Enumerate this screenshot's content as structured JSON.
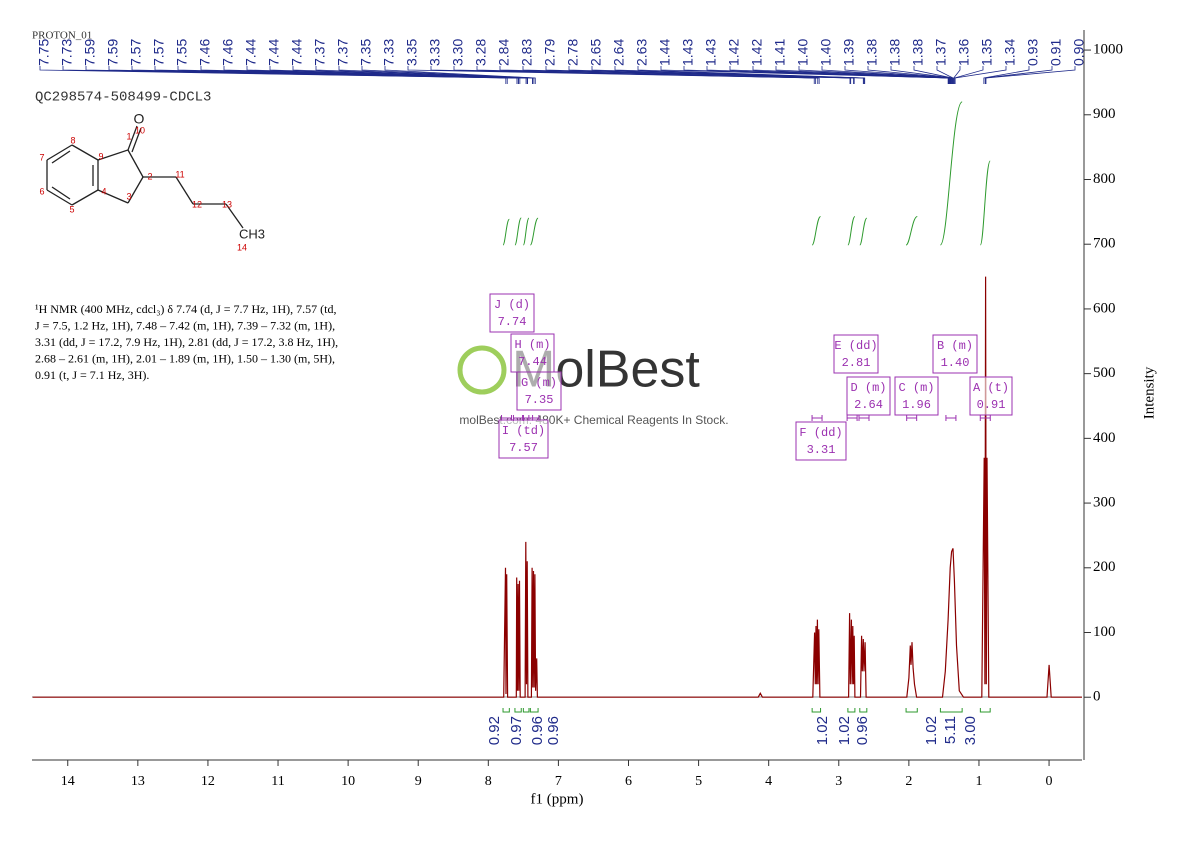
{
  "chart_data": {
    "type": "line",
    "header_text": "PROTON_01",
    "title": "QC298574-508499-CDCL3",
    "xlabel": "f1 (ppm)",
    "ylabel": "Intensity",
    "xlim": [
      14.51,
      -0.47
    ],
    "xticks": [
      14,
      13,
      12,
      11,
      10,
      9,
      8,
      7,
      6,
      5,
      4,
      3,
      2,
      1,
      0
    ],
    "ylim": [
      -97,
      1031
    ],
    "yticks": [
      0,
      100,
      200,
      300,
      400,
      500,
      600,
      700,
      800,
      900,
      1000
    ],
    "color": "#8b0000",
    "x": [
      14.5,
      7.78,
      7.755,
      7.748,
      7.738,
      7.725,
      7.6,
      7.595,
      7.585,
      7.575,
      7.565,
      7.555,
      7.545,
      7.475,
      7.465,
      7.455,
      7.445,
      7.435,
      7.385,
      7.375,
      7.365,
      7.355,
      7.345,
      7.335,
      7.325,
      7.31,
      7.3,
      4.15,
      4.12,
      4.09,
      3.37,
      3.345,
      3.335,
      3.325,
      3.315,
      3.305,
      3.295,
      3.285,
      3.27,
      2.86,
      2.845,
      2.835,
      2.82,
      2.81,
      2.8,
      2.79,
      2.78,
      2.77,
      2.69,
      2.675,
      2.665,
      2.65,
      2.64,
      2.625,
      2.61,
      2.03,
      2.0,
      1.98,
      1.97,
      1.955,
      1.94,
      1.92,
      1.89,
      1.52,
      1.48,
      1.44,
      1.41,
      1.39,
      1.37,
      1.35,
      1.32,
      1.28,
      1.22,
      0.96,
      0.925,
      0.915,
      0.905,
      0.895,
      0.885,
      0.86,
      0.03,
      0.0,
      -0.03,
      -0.47
    ],
    "values": [
      0,
      0,
      200,
      5,
      190,
      0,
      0,
      185,
      10,
      175,
      10,
      180,
      0,
      0,
      240,
      20,
      210,
      0,
      0,
      200,
      15,
      195,
      15,
      190,
      10,
      60,
      0,
      0,
      6,
      0,
      0,
      100,
      20,
      110,
      20,
      120,
      20,
      105,
      0,
      0,
      130,
      20,
      120,
      20,
      110,
      20,
      95,
      0,
      0,
      95,
      40,
      90,
      40,
      85,
      0,
      0,
      30,
      80,
      50,
      85,
      45,
      20,
      0,
      0,
      40,
      120,
      200,
      225,
      230,
      180,
      80,
      10,
      0,
      0,
      370,
      20,
      650,
      20,
      370,
      0,
      0,
      50,
      0,
      0
    ],
    "peak_labels": [
      "7.75",
      "7.73",
      "7.59",
      "7.59",
      "7.57",
      "7.57",
      "7.55",
      "7.46",
      "7.46",
      "7.44",
      "7.44",
      "7.44",
      "7.37",
      "7.37",
      "7.35",
      "7.33",
      "3.35",
      "3.33",
      "3.30",
      "3.28",
      "2.84",
      "2.83",
      "2.79",
      "2.78",
      "2.65",
      "2.64",
      "2.63",
      "1.44",
      "1.43",
      "1.43",
      "1.42",
      "1.42",
      "1.41",
      "1.40",
      "1.40",
      "1.39",
      "1.38",
      "1.38",
      "1.38",
      "1.37",
      "1.36",
      "1.35",
      "1.34",
      "0.93",
      "0.91",
      "0.90"
    ],
    "integrals": [
      {
        "label": "0.92",
        "range": [
          7.79,
          7.7
        ]
      },
      {
        "label": "0.97",
        "range": [
          7.62,
          7.53
        ]
      },
      {
        "label": "0.96",
        "range": [
          7.5,
          7.42
        ]
      },
      {
        "label": "0.96",
        "range": [
          7.4,
          7.29
        ]
      },
      {
        "label": "1.02",
        "range": [
          3.38,
          3.26
        ]
      },
      {
        "label": "1.02",
        "range": [
          2.87,
          2.77
        ]
      },
      {
        "label": "0.96",
        "range": [
          2.7,
          2.6
        ]
      },
      {
        "label": "1.02",
        "range": [
          2.04,
          1.88
        ]
      },
      {
        "label": "5.11",
        "range": [
          1.55,
          1.24
        ]
      },
      {
        "label": "3.00",
        "range": [
          0.98,
          0.84
        ]
      }
    ],
    "multiplets": [
      {
        "label": "J (d)",
        "shift": "7.74"
      },
      {
        "label": "H (m)",
        "shift": "7.44"
      },
      {
        "label": "G (m)",
        "shift": "7.35"
      },
      {
        "label": "I (td)",
        "shift": "7.57"
      },
      {
        "label": "E (dd)",
        "shift": "2.81"
      },
      {
        "label": "D (m)",
        "shift": "2.64"
      },
      {
        "label": "C (m)",
        "shift": "1.96"
      },
      {
        "label": "B (m)",
        "shift": "1.40"
      },
      {
        "label": "A (t)",
        "shift": "0.91"
      },
      {
        "label": "F (dd)",
        "shift": "3.31"
      }
    ],
    "description": [
      "¹H NMR (400 MHz, cdcl₃) δ 7.74 (d, J = 7.7 Hz, 1H), 7.57 (td,",
      "J = 7.5, 1.2 Hz, 1H), 7.48 – 7.42 (m, 1H), 7.39 – 7.32 (m, 1H),",
      "3.31 (dd, J = 17.2, 7.9 Hz, 1H), 2.81 (dd, J = 17.2, 3.8 Hz, 1H),",
      "2.68 – 2.61 (m, 1H), 2.01 – 1.89 (m, 1H), 1.50 – 1.30 (m, 5H),",
      "0.91 (t, J = 7.1 Hz, 3H)."
    ],
    "structure_labels": [
      "O",
      "10",
      "1",
      "2",
      "3",
      "4",
      "5",
      "6",
      "7",
      "8",
      "9",
      "11",
      "12",
      "13",
      "CH3",
      "14"
    ],
    "watermark": "MolBest",
    "watermark_caption": "molBest.com: 480K+ Chemical Reagents In Stock."
  }
}
